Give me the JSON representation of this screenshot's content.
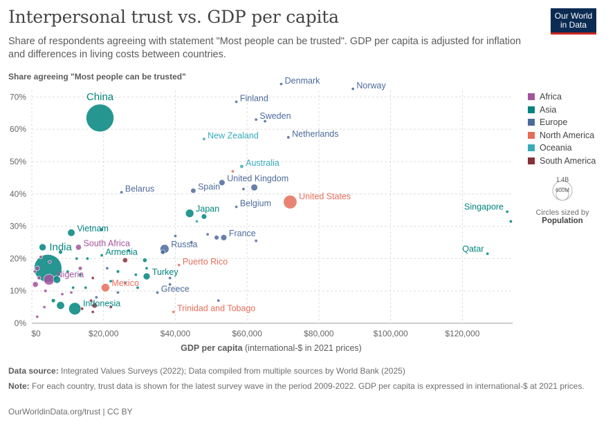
{
  "title": "Interpersonal trust vs. GDP per capita",
  "subtitle": "Share of respondents agreeing with statement \"Most people can be trusted\". GDP per capita is adjusted for inflation and differences in living costs between countries.",
  "logo": {
    "line1": "Our World",
    "line2": "in Data"
  },
  "legend": [
    {
      "label": "Africa",
      "color": "#a2559c"
    },
    {
      "label": "Asia",
      "color": "#00847e"
    },
    {
      "label": "Europe",
      "color": "#4c6a9c"
    },
    {
      "label": "North America",
      "color": "#e56e5a"
    },
    {
      "label": "Oceania",
      "color": "#38aaba"
    },
    {
      "label": "South America",
      "color": "#883039"
    }
  ],
  "size_legend": {
    "top_label": "1.4B",
    "inner_label": "600M",
    "caption": "Circles sized by",
    "caption_bold": "Population"
  },
  "footer": {
    "source_label": "Data source:",
    "source_text": " Integrated Values Surveys (2022); Data compiled from multiple sources by World Bank (2025)",
    "note_label": "Note:",
    "note_text": " For each country, trust data is shown for the latest survey wave in the period 2009-2022. GDP per capita is expressed in international-$ at 2021 prices.",
    "url": "OurWorldinData.org/trust | CC BY"
  },
  "chart_data": {
    "type": "scatter",
    "title": "Interpersonal trust vs. GDP per capita",
    "xlabel_bold": "GDP per capita",
    "xlabel_rest": " (international-$ in 2021 prices)",
    "ylabel": "Share agreeing \"Most people can be trusted\"",
    "xlim": [
      0,
      134000
    ],
    "ylim": [
      0,
      72
    ],
    "xticks": [
      0,
      20000,
      40000,
      60000,
      80000,
      100000,
      120000
    ],
    "xtick_labels": [
      "$0",
      "$20,000",
      "$40,000",
      "$60,000",
      "$80,000",
      "$100,000",
      "$120,000"
    ],
    "yticks": [
      0,
      10,
      20,
      30,
      40,
      50,
      60,
      70
    ],
    "ytick_labels": [
      "0%",
      "10%",
      "20%",
      "30%",
      "40%",
      "50%",
      "60%",
      "70%"
    ],
    "grid": true,
    "points": [
      {
        "name": "China",
        "x": 19000,
        "y": 63.5,
        "region": "Asia",
        "pop": 1410,
        "label": "China",
        "big": true
      },
      {
        "name": "India",
        "x": 4500,
        "y": 17,
        "region": "Asia",
        "pop": 1410,
        "label": "India",
        "big": true
      },
      {
        "name": "Denmark",
        "x": 69500,
        "y": 74,
        "region": "Europe",
        "pop": 6,
        "label": "Denmark"
      },
      {
        "name": "Norway",
        "x": 89500,
        "y": 72.5,
        "region": "Europe",
        "pop": 5,
        "label": "Norway"
      },
      {
        "name": "Finland",
        "x": 57000,
        "y": 68.5,
        "region": "Europe",
        "pop": 6,
        "label": "Finland"
      },
      {
        "name": "Sweden",
        "x": 62500,
        "y": 63,
        "region": "Europe",
        "pop": 10,
        "label": "Sweden"
      },
      {
        "name": "",
        "x": 65000,
        "y": 62.5,
        "region": "Europe",
        "pop": 4
      },
      {
        "name": "Netherlands",
        "x": 71500,
        "y": 57.5,
        "region": "Europe",
        "pop": 18,
        "label": "Netherlands"
      },
      {
        "name": "New Zealand",
        "x": 48000,
        "y": 57,
        "region": "Oceania",
        "pop": 5,
        "label": "New Zealand"
      },
      {
        "name": "Australia",
        "x": 58500,
        "y": 48.5,
        "region": "Oceania",
        "pop": 26,
        "label": "Australia"
      },
      {
        "name": "",
        "x": 56000,
        "y": 47,
        "region": "North America",
        "pop": 4
      },
      {
        "name": "United Kingdom",
        "x": 53000,
        "y": 43.5,
        "region": "Europe",
        "pop": 67,
        "label": "United Kingdom"
      },
      {
        "name": "",
        "x": 62000,
        "y": 42,
        "region": "Europe",
        "pop": 84
      },
      {
        "name": "",
        "x": 59000,
        "y": 41.5,
        "region": "Europe",
        "pop": 4
      },
      {
        "name": "Spain",
        "x": 45000,
        "y": 41,
        "region": "Europe",
        "pop": 48,
        "label": "Spain"
      },
      {
        "name": "Belarus",
        "x": 25000,
        "y": 40.5,
        "region": "Europe",
        "pop": 9,
        "label": "Belarus"
      },
      {
        "name": "United States",
        "x": 72000,
        "y": 37.5,
        "region": "North America",
        "pop": 333,
        "label": "United States"
      },
      {
        "name": "Belgium",
        "x": 57000,
        "y": 36,
        "region": "Europe",
        "pop": 12,
        "label": "Belgium"
      },
      {
        "name": "Singapore",
        "x": 132500,
        "y": 34.5,
        "region": "Asia",
        "pop": 6,
        "label": "Singapore"
      },
      {
        "name": "",
        "x": 133500,
        "y": 31.5,
        "region": "Asia",
        "pop": 3
      },
      {
        "name": "Japan",
        "x": 44000,
        "y": 34,
        "region": "Asia",
        "pop": 125,
        "label": "Japan"
      },
      {
        "name": "",
        "x": 48000,
        "y": 33,
        "region": "Asia",
        "pop": 52
      },
      {
        "name": "",
        "x": 46000,
        "y": 31.5,
        "region": "Oceania",
        "pop": 4
      },
      {
        "name": "Vietnam",
        "x": 11000,
        "y": 28,
        "region": "Asia",
        "pop": 98,
        "label": "Vietnam"
      },
      {
        "name": "",
        "x": 19500,
        "y": 29,
        "region": "Asia",
        "pop": 8
      },
      {
        "name": "France",
        "x": 53500,
        "y": 26.5,
        "region": "Europe",
        "pop": 68,
        "label": "France"
      },
      {
        "name": "",
        "x": 51500,
        "y": 26.5,
        "region": "Europe",
        "pop": 40
      },
      {
        "name": "",
        "x": 49000,
        "y": 27.5,
        "region": "Europe",
        "pop": 6
      },
      {
        "name": "",
        "x": 62500,
        "y": 25.5,
        "region": "Europe",
        "pop": 5
      },
      {
        "name": "Russia",
        "x": 37000,
        "y": 23,
        "region": "Europe",
        "pop": 144,
        "label": "Russia"
      },
      {
        "name": "",
        "x": 36500,
        "y": 22,
        "region": "Europe",
        "pop": 38
      },
      {
        "name": "",
        "x": 44500,
        "y": 25,
        "region": "Europe",
        "pop": 10
      },
      {
        "name": "",
        "x": 40000,
        "y": 27,
        "region": "Europe",
        "pop": 4
      },
      {
        "name": "South Africa",
        "x": 13000,
        "y": 23.5,
        "region": "Africa",
        "pop": 60,
        "label": "South Africa"
      },
      {
        "name": "",
        "x": 3000,
        "y": 23.5,
        "region": "Asia",
        "pop": 90
      },
      {
        "name": "Qatar",
        "x": 127000,
        "y": 21.5,
        "region": "Asia",
        "pop": 3,
        "label": "Qatar"
      },
      {
        "name": "Armenia",
        "x": 19500,
        "y": 21,
        "region": "Asia",
        "pop": 3,
        "label": "Armenia"
      },
      {
        "name": "",
        "x": 26000,
        "y": 19.5,
        "region": "South America",
        "pop": 46
      },
      {
        "name": "",
        "x": 31500,
        "y": 19.5,
        "region": "Asia",
        "pop": 35
      },
      {
        "name": "Puerto Rico",
        "x": 41000,
        "y": 18,
        "region": "North America",
        "pop": 3,
        "label": "Puerto Rico"
      },
      {
        "name": "Turkey",
        "x": 32000,
        "y": 14.5,
        "region": "Asia",
        "pop": 85,
        "label": "Turkey"
      },
      {
        "name": "",
        "x": 32000,
        "y": 17,
        "region": "Asia",
        "pop": 15
      },
      {
        "name": "Nigeria",
        "x": 4800,
        "y": 13.5,
        "region": "Africa",
        "pop": 213,
        "label": "Nigeria"
      },
      {
        "name": "",
        "x": 7000,
        "y": 13.5,
        "region": "Asia",
        "pop": 100
      },
      {
        "name": "",
        "x": 13500,
        "y": 15,
        "region": "Asia",
        "pop": 19
      },
      {
        "name": "",
        "x": 13500,
        "y": 17,
        "region": "Africa",
        "pop": 30
      },
      {
        "name": "Mexico",
        "x": 20500,
        "y": 11,
        "region": "North America",
        "pop": 127,
        "label": "Mexico"
      },
      {
        "name": "",
        "x": 17000,
        "y": 14,
        "region": "South America",
        "pop": 4
      },
      {
        "name": "Greece",
        "x": 35000,
        "y": 9.5,
        "region": "Europe",
        "pop": 10,
        "label": "Greece"
      },
      {
        "name": "",
        "x": 38500,
        "y": 14,
        "region": "Europe",
        "pop": 3
      },
      {
        "name": "",
        "x": 38500,
        "y": 12,
        "region": "Europe",
        "pop": 3
      },
      {
        "name": "Indonesia",
        "x": 12000,
        "y": 4.5,
        "region": "Asia",
        "pop": 274,
        "label": "Indonesia"
      },
      {
        "name": "",
        "x": 8000,
        "y": 5.5,
        "region": "Asia",
        "pop": 113
      },
      {
        "name": "",
        "x": 17500,
        "y": 5.5,
        "region": "South America",
        "pop": 50
      },
      {
        "name": "",
        "x": 14000,
        "y": 4.5,
        "region": "South America",
        "pop": 20
      },
      {
        "name": "",
        "x": 16500,
        "y": 7,
        "region": "South America",
        "pop": 10
      },
      {
        "name": "",
        "x": 17000,
        "y": 3.5,
        "region": "South America",
        "pop": 8
      },
      {
        "name": "",
        "x": 22000,
        "y": 5,
        "region": "South America",
        "pop": 4
      },
      {
        "name": "Trinidad and Tobago",
        "x": 39500,
        "y": 3.5,
        "region": "North America",
        "pop": 1.5,
        "label": "Trinidad and Tobago"
      },
      {
        "name": "",
        "x": 52000,
        "y": 7,
        "region": "Europe",
        "pop": 3
      },
      {
        "name": "",
        "x": 1000,
        "y": 12,
        "region": "Africa",
        "pop": 60
      },
      {
        "name": "",
        "x": 1500,
        "y": 17,
        "region": "Africa",
        "pop": 40
      },
      {
        "name": "",
        "x": 2500,
        "y": 20.5,
        "region": "Africa",
        "pop": 20
      },
      {
        "name": "",
        "x": 3800,
        "y": 10,
        "region": "Africa",
        "pop": 20
      },
      {
        "name": "",
        "x": 3500,
        "y": 5,
        "region": "Africa",
        "pop": 15
      },
      {
        "name": "",
        "x": 1500,
        "y": 2,
        "region": "Africa",
        "pop": 10
      },
      {
        "name": "",
        "x": 800,
        "y": 16,
        "region": "Africa",
        "pop": 12
      },
      {
        "name": "",
        "x": 5000,
        "y": 19,
        "region": "Africa",
        "pop": 18
      },
      {
        "name": "",
        "x": 8500,
        "y": 9,
        "region": "Africa",
        "pop": 10
      },
      {
        "name": "",
        "x": 11000,
        "y": 9.5,
        "region": "Africa",
        "pop": 8
      },
      {
        "name": "",
        "x": 2000,
        "y": 14,
        "region": "Africa",
        "pop": 25
      },
      {
        "name": "",
        "x": 6000,
        "y": 7,
        "region": "Asia",
        "pop": 30
      },
      {
        "name": "",
        "x": 10000,
        "y": 16,
        "region": "Asia",
        "pop": 10
      },
      {
        "name": "",
        "x": 15500,
        "y": 20,
        "region": "Asia",
        "pop": 6
      },
      {
        "name": "",
        "x": 12500,
        "y": 20,
        "region": "Asia",
        "pop": 7
      },
      {
        "name": "",
        "x": 24000,
        "y": 16,
        "region": "Asia",
        "pop": 20
      },
      {
        "name": "",
        "x": 29000,
        "y": 15,
        "region": "Asia",
        "pop": 5
      },
      {
        "name": "",
        "x": 8000,
        "y": 22,
        "region": "Asia",
        "pop": 30
      },
      {
        "name": "",
        "x": 22000,
        "y": 13,
        "region": "Asia",
        "pop": 6
      },
      {
        "name": "",
        "x": 29500,
        "y": 11,
        "region": "Asia",
        "pop": 4
      },
      {
        "name": "",
        "x": 15000,
        "y": 11,
        "region": "Asia",
        "pop": 10
      },
      {
        "name": "",
        "x": 27000,
        "y": 22.5,
        "region": "Asia",
        "pop": 5
      },
      {
        "name": "",
        "x": 11500,
        "y": 11,
        "region": "Asia",
        "pop": 6
      },
      {
        "name": "",
        "x": 24000,
        "y": 9.5,
        "region": "Europe",
        "pop": 7
      },
      {
        "name": "",
        "x": 18000,
        "y": 8,
        "region": "Europe",
        "pop": 4
      },
      {
        "name": "",
        "x": 21000,
        "y": 17,
        "region": "Europe",
        "pop": 7
      },
      {
        "name": "",
        "x": 26000,
        "y": 12.5,
        "region": "Europe",
        "pop": 3
      }
    ]
  }
}
